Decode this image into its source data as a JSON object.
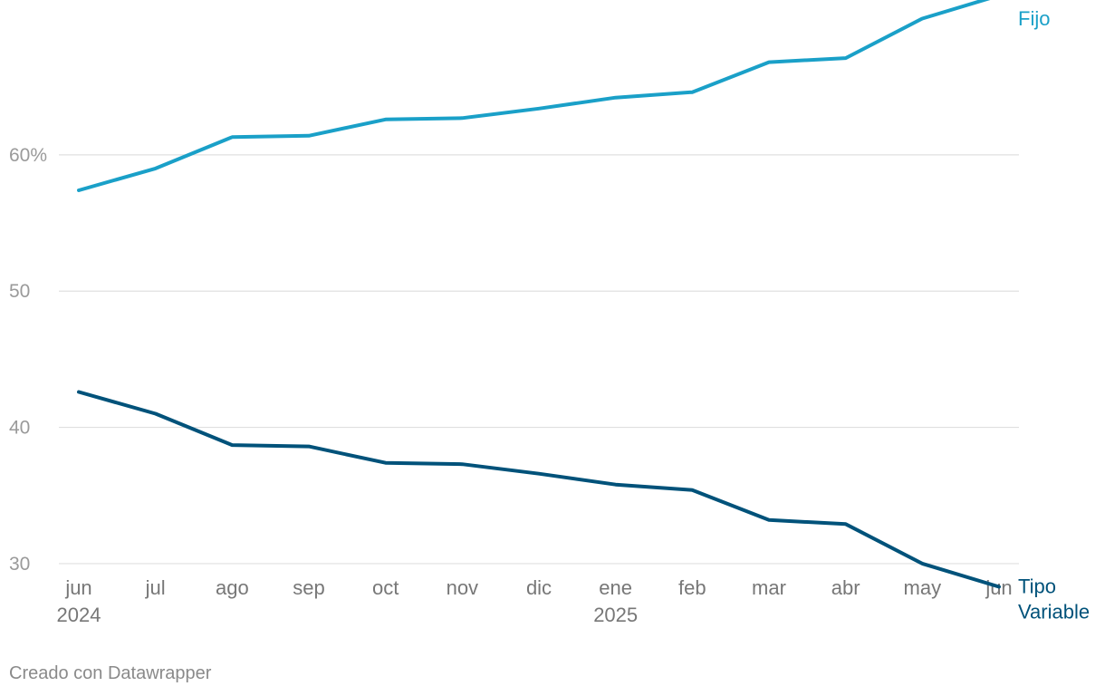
{
  "chart_data": {
    "type": "line",
    "categories": [
      "jun",
      "jul",
      "ago",
      "sep",
      "oct",
      "nov",
      "dic",
      "ene",
      "feb",
      "mar",
      "abr",
      "may",
      "jun"
    ],
    "year_labels": [
      "2024",
      "",
      "",
      "",
      "",
      "",
      "",
      "2025",
      "",
      "",
      "",
      "",
      ""
    ],
    "y_ticks": [
      {
        "value": 30,
        "label": "30"
      },
      {
        "value": 40,
        "label": "40"
      },
      {
        "value": 50,
        "label": "50"
      },
      {
        "value": 60,
        "label": "60%"
      }
    ],
    "ylim": [
      28,
      70.7
    ],
    "grid": true,
    "series": [
      {
        "name": "Fijo",
        "color": "#1aa0c8",
        "values": [
          57.4,
          59.0,
          61.3,
          61.4,
          62.6,
          62.7,
          63.4,
          64.2,
          64.6,
          66.8,
          67.1,
          70.0,
          71.7
        ]
      },
      {
        "name": "Tipo Variable",
        "color": "#00527a",
        "values": [
          42.6,
          41.0,
          38.7,
          38.6,
          37.4,
          37.3,
          36.6,
          35.8,
          35.4,
          33.2,
          32.9,
          30.0,
          28.3
        ]
      }
    ],
    "series_labels": [
      {
        "lines": [
          "Fijo"
        ],
        "color": "#1aa0c8"
      },
      {
        "lines": [
          "Tipo",
          "Variable"
        ],
        "color": "#00527a"
      }
    ]
  },
  "footer": "Creado con Datawrapper"
}
